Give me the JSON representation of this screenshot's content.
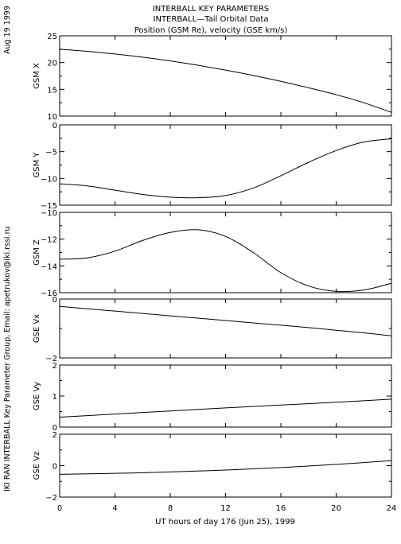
{
  "header": {
    "date_stamp": "Aug 19 1999",
    "title_line1": "INTERBALL KEY PARAMETERS",
    "title_line2": "INTERBALL—Tail Orbital Data",
    "title_line3": "Position (GSM Re), velocity (GSE km/s)"
  },
  "side_credit": "IKI RAN INTERBALL Key Parameter Group, Email: apetrukov@iki.rssi.ru",
  "chart_data": {
    "type": "line",
    "xlabel": "UT hours of day 176 (Jun 25), 1999",
    "xlim": [
      0,
      24
    ],
    "xticks": [
      0,
      4,
      8,
      12,
      16,
      20,
      24
    ],
    "panels": [
      {
        "ylabel": "GSM X",
        "ylim": [
          10,
          25
        ],
        "yticks": [
          10,
          15,
          20,
          25
        ],
        "x": [
          0,
          2,
          4,
          6,
          8,
          10,
          12,
          14,
          16,
          18,
          20,
          22,
          24
        ],
        "y": [
          22.5,
          22.1,
          21.6,
          21.0,
          20.3,
          19.5,
          18.6,
          17.6,
          16.5,
          15.3,
          14.0,
          12.5,
          10.7
        ]
      },
      {
        "ylabel": "GSM Y",
        "ylim": [
          -15,
          0
        ],
        "yticks": [
          -15,
          -10,
          -5,
          0
        ],
        "x": [
          0,
          2,
          4,
          6,
          8,
          10,
          12,
          14,
          16,
          18,
          20,
          22,
          24
        ],
        "y": [
          -11.0,
          -11.4,
          -12.2,
          -13.0,
          -13.5,
          -13.6,
          -13.2,
          -11.8,
          -9.5,
          -7.0,
          -4.8,
          -3.2,
          -2.6
        ]
      },
      {
        "ylabel": "GSM Z",
        "ylim": [
          -16,
          -10
        ],
        "yticks": [
          -16,
          -14,
          -12,
          -10
        ],
        "x": [
          0,
          2,
          4,
          6,
          8,
          10,
          12,
          14,
          16,
          18,
          20,
          22,
          24
        ],
        "y": [
          -13.5,
          -13.4,
          -12.9,
          -12.1,
          -11.5,
          -11.3,
          -11.8,
          -13.0,
          -14.5,
          -15.5,
          -15.9,
          -15.8,
          -15.3
        ]
      },
      {
        "ylabel": "GSE Vx",
        "ylim": [
          -2,
          0
        ],
        "yticks": [
          -2,
          0
        ],
        "x": [
          0,
          2,
          4,
          6,
          8,
          10,
          12,
          14,
          16,
          18,
          20,
          22,
          24
        ],
        "y": [
          -0.25,
          -0.33,
          -0.41,
          -0.49,
          -0.57,
          -0.65,
          -0.73,
          -0.81,
          -0.89,
          -0.97,
          -1.06,
          -1.15,
          -1.25
        ]
      },
      {
        "ylabel": "GSE Vy",
        "ylim": [
          0,
          2
        ],
        "yticks": [
          0,
          1,
          2
        ],
        "x": [
          0,
          4,
          8,
          12,
          16,
          20,
          24
        ],
        "y": [
          0.32,
          0.42,
          0.52,
          0.62,
          0.71,
          0.8,
          0.9
        ]
      },
      {
        "ylabel": "GSE Vz",
        "ylim": [
          -2,
          2
        ],
        "yticks": [
          -2,
          0,
          2
        ],
        "x": [
          0,
          4,
          8,
          12,
          16,
          20,
          24
        ],
        "y": [
          -0.55,
          -0.49,
          -0.4,
          -0.28,
          -0.12,
          0.08,
          0.32
        ]
      }
    ]
  }
}
